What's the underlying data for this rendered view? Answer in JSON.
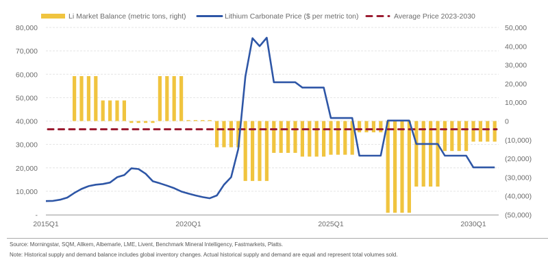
{
  "chart_data": {
    "type": "bar+line",
    "legend": {
      "placement": "top",
      "entries": [
        {
          "label": "Li Market Balance (metric tons, right)",
          "type": "bar",
          "color": "#F0C43F"
        },
        {
          "label": "Lithium Carbonate Price ($ per metric ton)",
          "type": "line",
          "color": "#2E56A6"
        },
        {
          "label": "Average Price 2023-2030",
          "type": "dashed-line",
          "color": "#9B1C31"
        }
      ]
    },
    "categories": [
      "2015Q1",
      "2015Q2",
      "2015Q3",
      "2015Q4",
      "2016Q1",
      "2016Q2",
      "2016Q3",
      "2016Q4",
      "2017Q1",
      "2017Q2",
      "2017Q3",
      "2017Q4",
      "2018Q1",
      "2018Q2",
      "2018Q3",
      "2018Q4",
      "2019Q1",
      "2019Q2",
      "2019Q3",
      "2019Q4",
      "2020Q1",
      "2020Q2",
      "2020Q3",
      "2020Q4",
      "2021Q1",
      "2021Q2",
      "2021Q3",
      "2021Q4",
      "2022Q1",
      "2022Q2",
      "2022Q3",
      "2022Q4",
      "2023Q1",
      "2023Q2",
      "2023Q3",
      "2023Q4",
      "2024Q1",
      "2024Q2",
      "2024Q3",
      "2024Q4",
      "2025Q1",
      "2025Q2",
      "2025Q3",
      "2025Q4",
      "2026Q1",
      "2026Q2",
      "2026Q3",
      "2026Q4",
      "2027Q1",
      "2027Q2",
      "2027Q3",
      "2027Q4",
      "2028Q1",
      "2028Q2",
      "2028Q3",
      "2028Q4",
      "2029Q1",
      "2029Q2",
      "2029Q3",
      "2029Q4",
      "2030Q1",
      "2030Q2",
      "2030Q3",
      "2030Q4"
    ],
    "x_tick_labels": [
      "2015Q1",
      "2020Q1",
      "2025Q1",
      "2030Q1"
    ],
    "left_axis": {
      "range": [
        0,
        80000
      ],
      "ticks": [
        "-",
        "10,000",
        "20,000",
        "30,000",
        "40,000",
        "50,000",
        "60,000",
        "70,000",
        "80,000"
      ]
    },
    "right_axis": {
      "range": [
        -50000,
        50000
      ],
      "ticks": [
        "(50,000)",
        "(40,000)",
        "(30,000)",
        "(20,000)",
        "(10,000)",
        "0",
        "10,000",
        "20,000",
        "30,000",
        "40,000",
        "50,000"
      ]
    },
    "grid": "horizontal dashed",
    "series": [
      {
        "name": "Li Market Balance (metric tons, right)",
        "type": "bar",
        "axis": "right",
        "values": [
          null,
          null,
          null,
          null,
          24000,
          24000,
          24000,
          24000,
          11000,
          11000,
          11000,
          11000,
          -1000,
          -1000,
          -1000,
          -1000,
          24000,
          24000,
          24000,
          24000,
          500,
          500,
          500,
          500,
          -14000,
          -14000,
          -14000,
          -14000,
          -32000,
          -32000,
          -32000,
          -32000,
          -17000,
          -17000,
          -17000,
          -17000,
          -19000,
          -19000,
          -19000,
          -19000,
          -18000,
          -18000,
          -18000,
          -18000,
          -6000,
          -6000,
          -6000,
          -6000,
          -49000,
          -49000,
          -49000,
          -49000,
          -35000,
          -35000,
          -35000,
          -35000,
          -16000,
          -16000,
          -16000,
          -16000,
          -11000,
          -11000,
          -11000,
          -11000
        ]
      },
      {
        "name": "Lithium Carbonate Price ($ per metric ton)",
        "type": "line",
        "axis": "left",
        "values": [
          5800,
          5900,
          6400,
          7300,
          9300,
          11000,
          12200,
          12800,
          13100,
          13700,
          16000,
          16900,
          19800,
          19500,
          17500,
          14300,
          13400,
          12400,
          11300,
          9900,
          9000,
          8200,
          7500,
          7000,
          8200,
          12800,
          16000,
          28000,
          59000,
          75400,
          72000,
          75600,
          56600,
          56600,
          56600,
          56600,
          54300,
          54300,
          54300,
          54300,
          41300,
          41300,
          41300,
          41300,
          25200,
          25200,
          25200,
          25200,
          40200,
          40200,
          40200,
          40200,
          30200,
          30200,
          30200,
          30200,
          25200,
          25200,
          25200,
          25200,
          20200,
          20200,
          20200,
          20200
        ]
      },
      {
        "name": "Average Price 2023-2030",
        "type": "dashed-line",
        "axis": "left",
        "value": 36500
      }
    ]
  },
  "footer": {
    "source": "Source: Morningstar, SQM, Allkem, Albemarle, LME, Livent, Benchmark Mineral Intelligency, Fastmarkets, Platts.",
    "note": "Note: Historical supply and demand balance includes global inventory changes. Actual historical supply and demand are equal and represent total volumes sold."
  }
}
